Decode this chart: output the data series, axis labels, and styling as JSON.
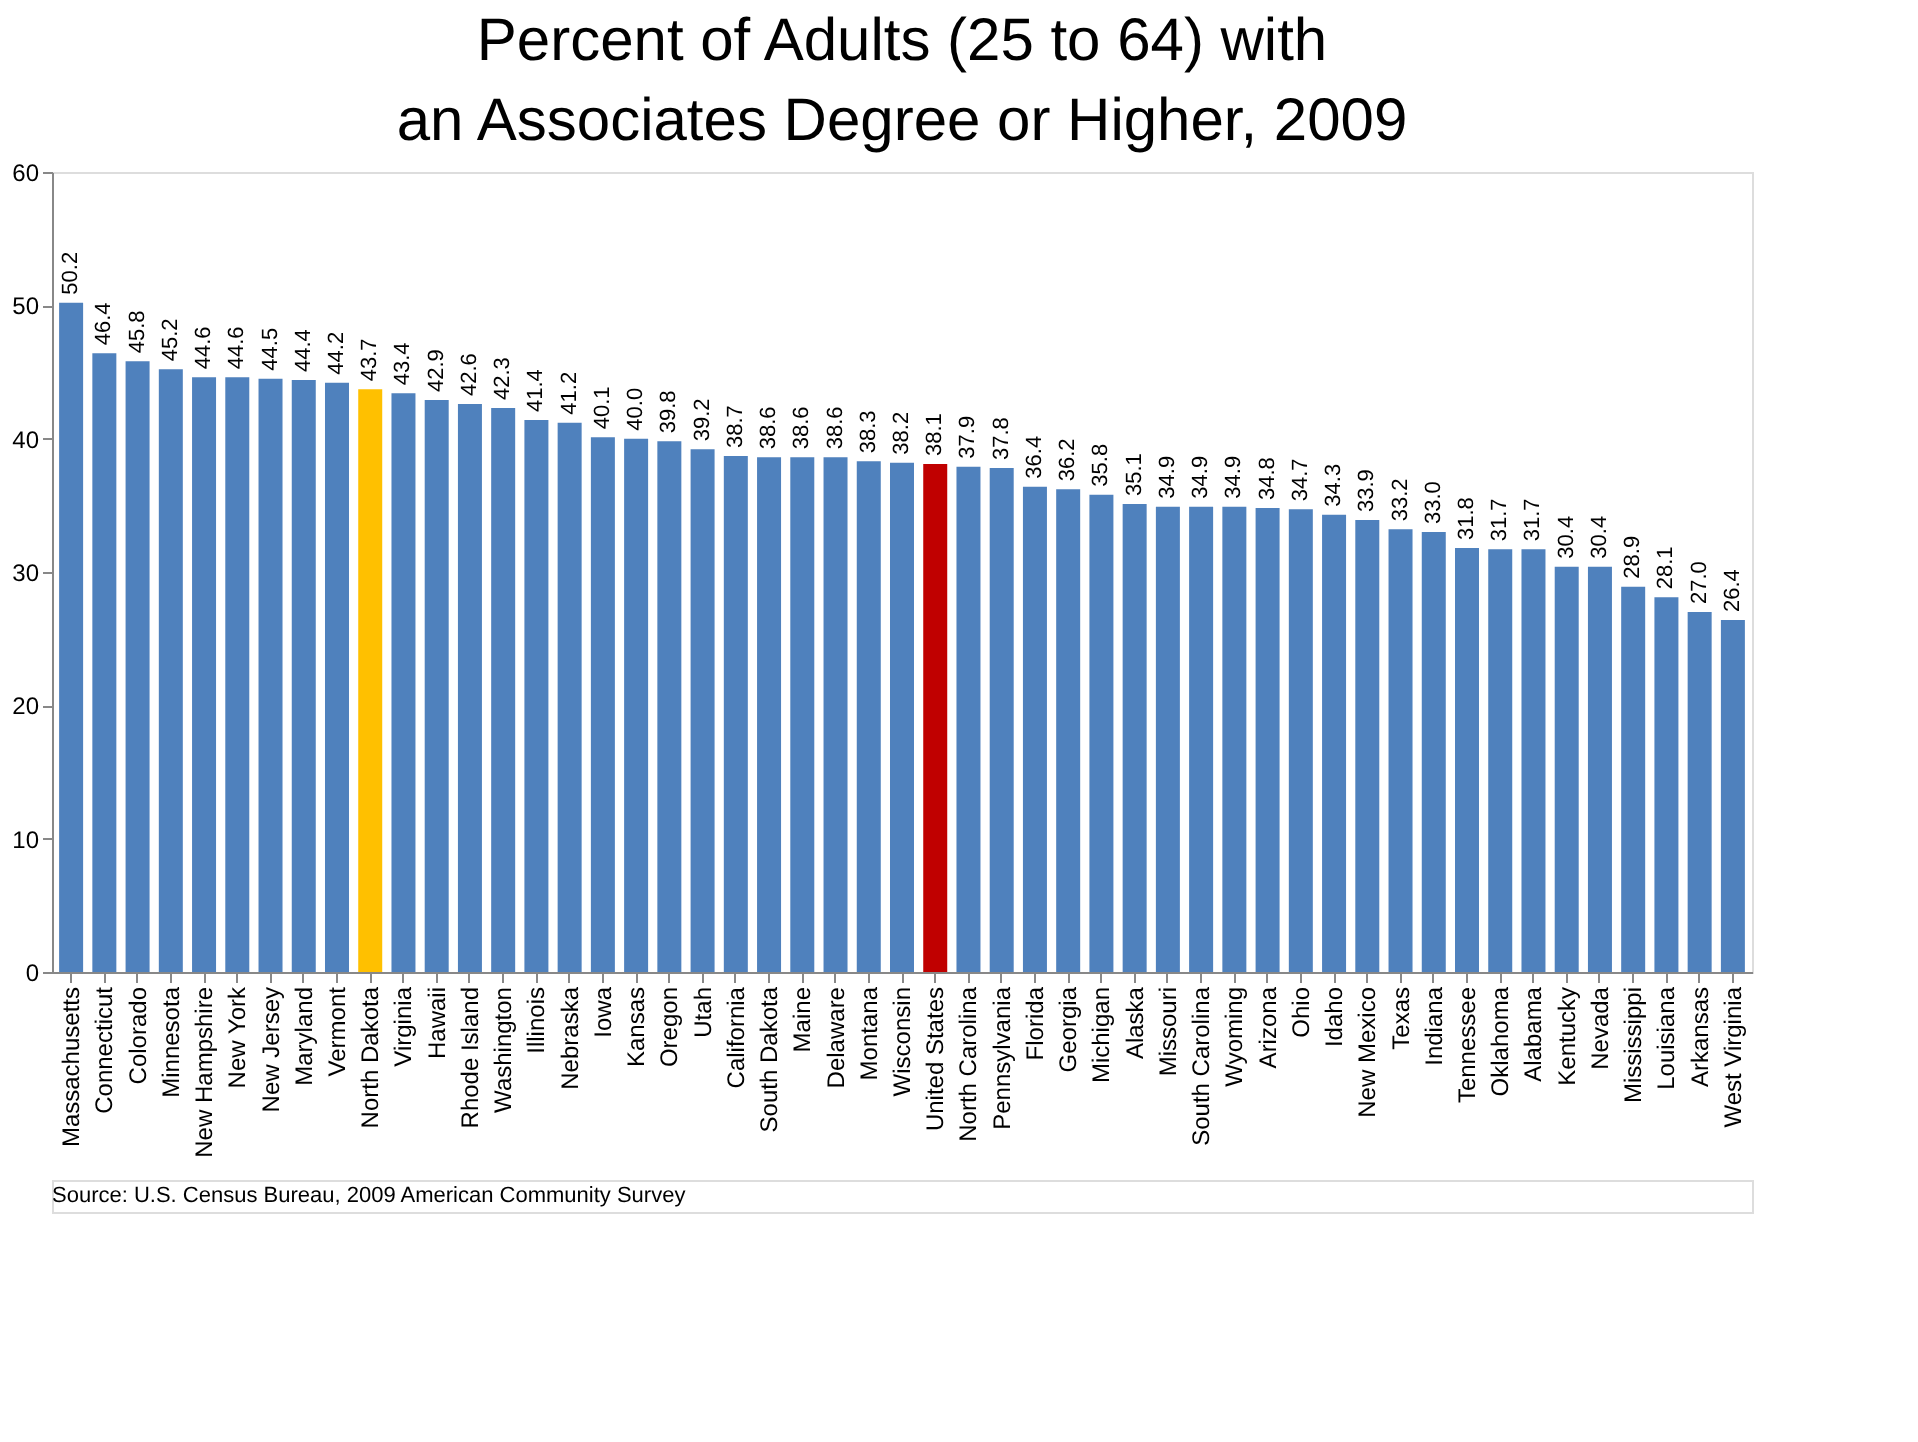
{
  "chart_data": {
    "type": "bar",
    "title": "Percent of Adults (25 to 64) with an Associates Degree or Higher, 2009",
    "categories": [
      "Massachusetts",
      "Connecticut",
      "Colorado",
      "Minnesota",
      "New Hampshire",
      "New York",
      "New Jersey",
      "Maryland",
      "Vermont",
      "North Dakota",
      "Virginia",
      "Hawaii",
      "Rhode Island",
      "Washington",
      "Illinois",
      "Nebraska",
      "Iowa",
      "Kansas",
      "Oregon",
      "Utah",
      "California",
      "South Dakota",
      "Maine",
      "Delaware",
      "Montana",
      "Wisconsin",
      "United States",
      "North Carolina",
      "Pennsylvania",
      "Florida",
      "Georgia",
      "Michigan",
      "Alaska",
      "Missouri",
      "South Carolina",
      "Wyoming",
      "Arizona",
      "Ohio",
      "Idaho",
      "New Mexico",
      "Texas",
      "Indiana",
      "Tennessee",
      "Oklahoma",
      "Alabama",
      "Kentucky",
      "Nevada",
      "Mississippi",
      "Louisiana",
      "Arkansas",
      "West Virginia"
    ],
    "values": [
      50.2,
      46.4,
      45.8,
      45.2,
      44.6,
      44.6,
      44.5,
      44.4,
      44.2,
      43.7,
      43.4,
      42.9,
      42.6,
      42.3,
      41.4,
      41.2,
      40.1,
      40.0,
      39.8,
      39.2,
      38.7,
      38.6,
      38.6,
      38.6,
      38.3,
      38.2,
      38.1,
      37.9,
      37.8,
      36.4,
      36.2,
      35.8,
      35.1,
      34.9,
      34.9,
      34.9,
      34.8,
      34.7,
      34.3,
      33.9,
      33.2,
      33.0,
      31.8,
      31.7,
      31.7,
      30.4,
      30.4,
      28.9,
      28.1,
      27.0,
      26.4
    ],
    "value_labels": [
      "50.2",
      "46.4",
      "45.8",
      "45.2",
      "44.6",
      "44.6",
      "44.5",
      "44.4",
      "44.2",
      "43.7",
      "43.4",
      "42.9",
      "42.6",
      "42.3",
      "41.4",
      "41.2",
      "40.1",
      "40.0",
      "39.8",
      "39.2",
      "38.7",
      "38.6",
      "38.6",
      "38.6",
      "38.3",
      "38.2",
      "38.1",
      "37.9",
      "37.8",
      "36.4",
      "36.2",
      "35.8",
      "35.1",
      "34.9",
      "34.9",
      "34.9",
      "34.8",
      "34.7",
      "34.3",
      "33.9",
      "33.2",
      "33.0",
      "31.8",
      "31.7",
      "31.7",
      "30.4",
      "30.4",
      "28.9",
      "28.1",
      "27.0",
      "26.4"
    ],
    "colors": [
      "#4f81bd",
      "#4f81bd",
      "#4f81bd",
      "#4f81bd",
      "#4f81bd",
      "#4f81bd",
      "#4f81bd",
      "#4f81bd",
      "#4f81bd",
      "#ffc000",
      "#4f81bd",
      "#4f81bd",
      "#4f81bd",
      "#4f81bd",
      "#4f81bd",
      "#4f81bd",
      "#4f81bd",
      "#4f81bd",
      "#4f81bd",
      "#4f81bd",
      "#4f81bd",
      "#4f81bd",
      "#4f81bd",
      "#4f81bd",
      "#4f81bd",
      "#4f81bd",
      "#c00000",
      "#4f81bd",
      "#4f81bd",
      "#4f81bd",
      "#4f81bd",
      "#4f81bd",
      "#4f81bd",
      "#4f81bd",
      "#4f81bd",
      "#4f81bd",
      "#4f81bd",
      "#4f81bd",
      "#4f81bd",
      "#4f81bd",
      "#4f81bd",
      "#4f81bd",
      "#4f81bd",
      "#4f81bd",
      "#4f81bd",
      "#4f81bd",
      "#4f81bd",
      "#4f81bd",
      "#4f81bd",
      "#4f81bd",
      "#4f81bd"
    ],
    "ylim": [
      0,
      60
    ],
    "yticks": [
      0,
      10,
      20,
      30,
      40,
      50,
      60
    ],
    "grid": false,
    "annotations": [
      "Source: U.S. Census Bureau, 2009 American Community Survey"
    ]
  }
}
